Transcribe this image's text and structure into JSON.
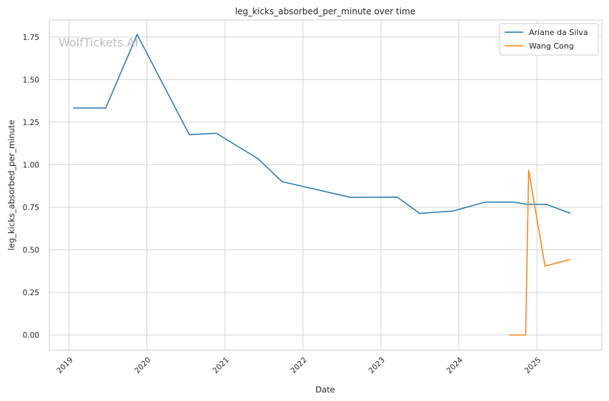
{
  "chart_data": {
    "type": "line",
    "title": "leg_kicks_absorbed_per_minute over time",
    "xlabel": "Date",
    "ylabel": "leg_kicks_absorbed_per_minute",
    "watermark": "WolfTickets.AI",
    "x_tick_labels": [
      "2019",
      "2020",
      "2021",
      "2022",
      "2023",
      "2024",
      "2025"
    ],
    "y_tick_labels": [
      "0.00",
      "0.25",
      "0.50",
      "0.75",
      "1.00",
      "1.25",
      "1.50",
      "1.75"
    ],
    "ylim": [
      -0.09,
      1.85
    ],
    "xlim": [
      "2018-10-01",
      "2025-11-01"
    ],
    "grid": true,
    "legend_position": "top-right",
    "series": [
      {
        "name": "Ariane da Silva",
        "color": "#1f77b4",
        "points": [
          [
            "2019-01-20",
            1.333
          ],
          [
            "2019-06-22",
            1.333
          ],
          [
            "2019-11-16",
            1.765
          ],
          [
            "2020-07-18",
            1.176
          ],
          [
            "2020-11-21",
            1.185
          ],
          [
            "2021-06-05",
            1.035
          ],
          [
            "2021-09-25",
            0.9
          ],
          [
            "2022-08-13",
            0.808
          ],
          [
            "2023-03-18",
            0.81
          ],
          [
            "2023-07-01",
            0.714
          ],
          [
            "2023-12-02",
            0.727
          ],
          [
            "2024-05-04",
            0.78
          ],
          [
            "2024-09-14",
            0.78
          ],
          [
            "2024-11-16",
            0.767
          ],
          [
            "2025-02-15",
            0.767
          ],
          [
            "2025-06-07",
            0.714
          ]
        ]
      },
      {
        "name": "Wang Cong",
        "color": "#ff7f0e",
        "points": [
          [
            "2024-08-24",
            0.0
          ],
          [
            "2024-11-09",
            0.0
          ],
          [
            "2024-11-23",
            0.967
          ],
          [
            "2025-02-08",
            0.404
          ],
          [
            "2025-06-07",
            0.444
          ]
        ]
      }
    ]
  }
}
